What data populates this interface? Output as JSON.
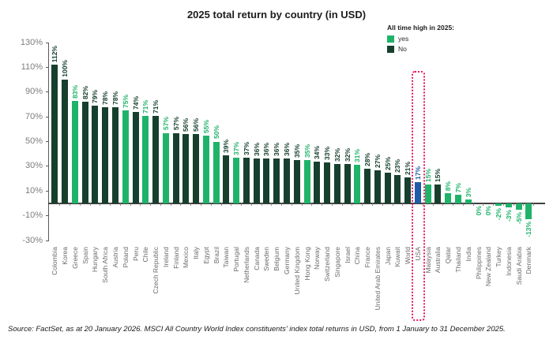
{
  "legend": {
    "title": "All time high in 2025:",
    "items": [
      {
        "label": "yes",
        "color": "#1fb36a"
      },
      {
        "label": "No",
        "color": "#16402d"
      }
    ]
  },
  "colors": {
    "ath_yes": "#1fb36a",
    "ath_no": "#16402d",
    "highlight_bar": "#1f5ca8",
    "highlight_box": "#eb1464",
    "axis": "#5a5a5a",
    "baseline": "#3f3f3f",
    "ytick_text": "#7d7d7d",
    "country_text": "#6a6a6a"
  },
  "chart_data": {
    "type": "bar",
    "title": "2025 total return by country (in USD)",
    "xlabel": "",
    "ylabel": "",
    "ylim": [
      -30,
      130
    ],
    "yticks": [
      130,
      110,
      90,
      70,
      50,
      30,
      10,
      -10,
      -30
    ],
    "ytick_suffix": "%",
    "grid": false,
    "legend_position": "top-right",
    "highlight": "USA",
    "categories": [
      "Colombia",
      "Korea",
      "Greece",
      "Spain",
      "Hungary",
      "South Africa",
      "Austria",
      "Poland",
      "Peru",
      "Chile",
      "Czech Republic",
      "Ireland",
      "Finland",
      "Mexico",
      "Italy",
      "Egypt",
      "Brazil",
      "Taiwan",
      "Portugal",
      "Netherlands",
      "Canada",
      "Sweden",
      "Belgium",
      "Germany",
      "United Kingdom",
      "Hong Kong",
      "Norway",
      "Switzerland",
      "Singapore",
      "Israel",
      "China",
      "France",
      "United Arab Emirates",
      "Japan",
      "Kuwait",
      "World",
      "USA",
      "Malaysia",
      "Australia",
      "Qatar",
      "Thailand",
      "India",
      "Philippines",
      "New Zealand",
      "Turkey",
      "Indonesia",
      "Saudi Arabia",
      "Denmark"
    ],
    "values": [
      112,
      100,
      83,
      82,
      79,
      78,
      78,
      75,
      74,
      71,
      71,
      57,
      57,
      56,
      56,
      55,
      50,
      39,
      37,
      37,
      36,
      36,
      36,
      36,
      35,
      35,
      34,
      33,
      32,
      32,
      31,
      28,
      27,
      25,
      23,
      21,
      17,
      15,
      15,
      8,
      7,
      3,
      0,
      0,
      -2,
      -3,
      -5,
      -13
    ],
    "all_time_high": [
      "no",
      "no",
      "yes",
      "no",
      "no",
      "no",
      "no",
      "yes",
      "no",
      "yes",
      "no",
      "yes",
      "no",
      "no",
      "no",
      "yes",
      "yes",
      "no",
      "yes",
      "no",
      "no",
      "no",
      "no",
      "no",
      "no",
      "yes",
      "no",
      "no",
      "no",
      "no",
      "yes",
      "no",
      "no",
      "no",
      "no",
      "no",
      "no",
      "yes",
      "no",
      "yes",
      "yes",
      "yes",
      "yes",
      "yes",
      "yes",
      "yes",
      "yes",
      "yes"
    ]
  },
  "source_note": "Source: FactSet, as at 20 January 2026. MSCI All Country World Index constituents' index total returns in USD, from 1 January to 31 December 2025."
}
